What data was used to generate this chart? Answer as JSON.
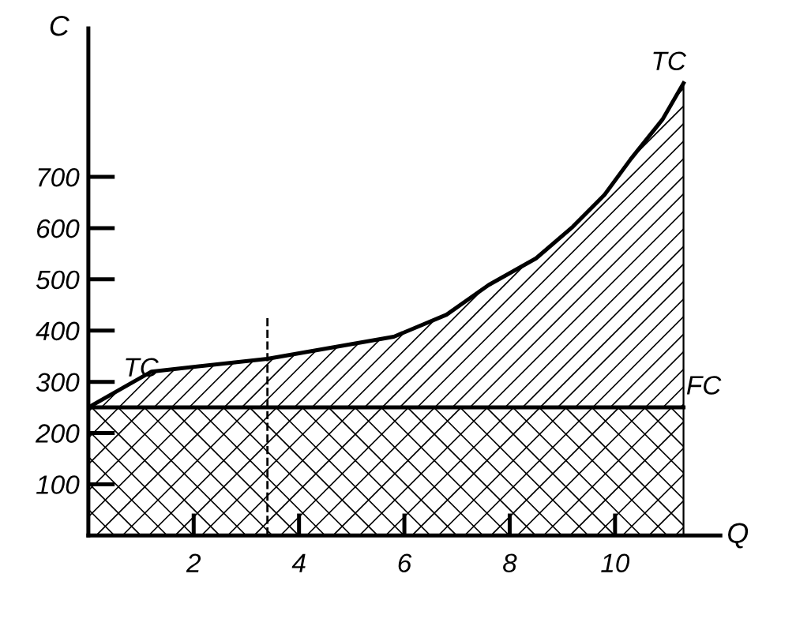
{
  "chart_data": {
    "type": "area",
    "xlabel": "Q",
    "ylabel": "C",
    "series": [
      {
        "name": "FC",
        "color": "#000000",
        "x": [
          0,
          11.3
        ],
        "values": [
          250,
          250
        ]
      },
      {
        "name": "TC",
        "color": "#000000",
        "x": [
          0,
          1.2,
          3.4,
          5.8,
          6.8,
          7.6,
          8.5,
          9.2,
          9.8,
          10.3,
          10.9,
          11.3
        ],
        "values": [
          250,
          320,
          345,
          388,
          431,
          489,
          541,
          603,
          665,
          735,
          812,
          883
        ]
      }
    ],
    "annotations": [
      {
        "text": "TC",
        "x": 1.0,
        "y": 300
      }
    ],
    "ref_lines": [
      {
        "axis": "x",
        "value": 3.4,
        "label": null,
        "line_style": "dashed"
      }
    ],
    "xlim": [
      0,
      12
    ],
    "ylim": [
      0,
      990
    ],
    "xticks": [
      2,
      4,
      6,
      8,
      10
    ],
    "yticks": [
      100,
      200,
      300,
      400,
      500,
      600,
      700
    ],
    "grid": false,
    "marker": "none",
    "line_style": "solid"
  }
}
